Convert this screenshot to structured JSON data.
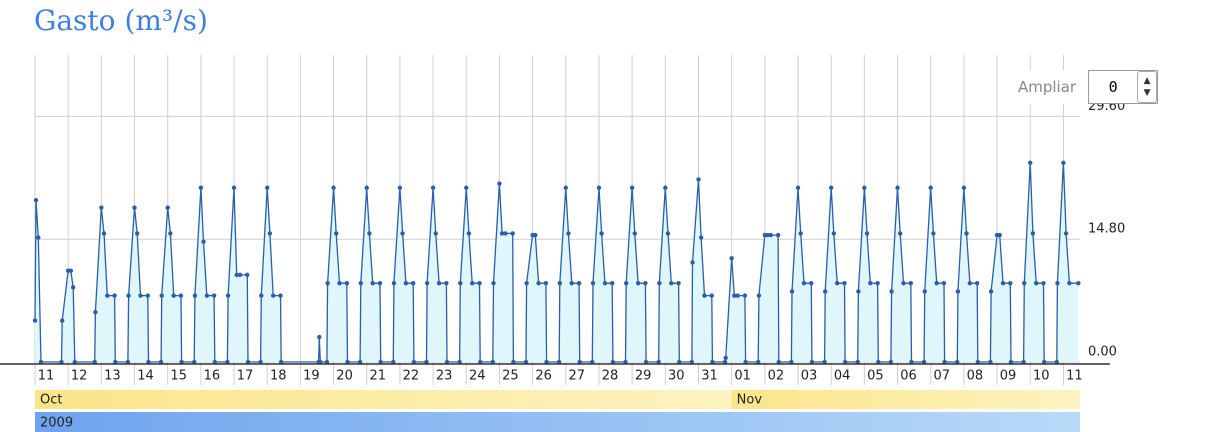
{
  "chart_data": {
    "type": "area-line",
    "title": "Gasto (m³/s)",
    "x": [
      0,
      0.03,
      0.1,
      0.18,
      0.8,
      0.82,
      1,
      1.08,
      1.15,
      1.2,
      1.8,
      1.82,
      2,
      2.08,
      2.18,
      2.4,
      2.42,
      2.8,
      2.82,
      3,
      3.08,
      3.18,
      3.4,
      3.42,
      3.8,
      3.82,
      4,
      4.08,
      4.18,
      4.4,
      4.42,
      4.8,
      4.82,
      5,
      5.08,
      5.18,
      5.4,
      5.42,
      5.8,
      5.82,
      6,
      6.08,
      6.18,
      6.4,
      6.42,
      6.8,
      6.82,
      7,
      7.08,
      7.18,
      7.4,
      7.42,
      8.55,
      8.57,
      8.6,
      8.8,
      8.82,
      9,
      9.08,
      9.18,
      9.4,
      9.42,
      9.8,
      9.82,
      10,
      10.08,
      10.18,
      10.4,
      10.42,
      10.8,
      10.82,
      11,
      11.08,
      11.18,
      11.4,
      11.42,
      11.8,
      11.82,
      12,
      12.08,
      12.18,
      12.4,
      12.42,
      12.8,
      12.82,
      13,
      13.08,
      13.18,
      13.4,
      13.42,
      13.8,
      13.82,
      14,
      14.08,
      14.18,
      14.4,
      14.42,
      14.8,
      14.82,
      15,
      15.08,
      15.18,
      15.4,
      15.42,
      15.8,
      15.82,
      16,
      16.08,
      16.18,
      16.4,
      16.42,
      16.8,
      16.82,
      17,
      17.08,
      17.18,
      17.4,
      17.42,
      17.8,
      17.82,
      18,
      18.08,
      18.18,
      18.4,
      18.42,
      18.8,
      18.82,
      19,
      19.08,
      19.18,
      19.4,
      19.42,
      19.8,
      19.82,
      20,
      20.08,
      20.18,
      20.4,
      20.42,
      20.8,
      20.82,
      21,
      21.08,
      21.18,
      21.4,
      21.42,
      21.8,
      21.82,
      22,
      22.08,
      22.18,
      22.4,
      22.42,
      22.8,
      22.82,
      23,
      23.08,
      23.18,
      23.4,
      23.42,
      23.8,
      23.82,
      24,
      24.08,
      24.18,
      24.4,
      24.42,
      24.8,
      24.82,
      25,
      25.08,
      25.18,
      25.4,
      25.42,
      25.8,
      25.82,
      26,
      26.08,
      26.18,
      26.4,
      26.42,
      26.8,
      26.82,
      27,
      27.08,
      27.18,
      27.4,
      27.42,
      27.8,
      27.82,
      28,
      28.08,
      28.18,
      28.4,
      28.42,
      28.8,
      28.82,
      29,
      29.08,
      29.18,
      29.4,
      29.42,
      29.8,
      29.82,
      30,
      30.08,
      30.18,
      30.4,
      30.42,
      30.8,
      30.82,
      31,
      31.08,
      31.18,
      31.45
    ],
    "values": [
      5,
      19.5,
      15,
      0,
      0,
      5,
      11,
      11,
      9,
      0,
      0,
      6,
      18.6,
      15.5,
      8,
      8,
      0,
      0,
      8,
      18.6,
      15.5,
      8,
      8,
      0,
      0,
      8,
      18.6,
      15.5,
      8,
      8,
      0,
      0,
      8,
      21,
      14.5,
      8,
      8,
      0,
      0,
      8,
      21,
      10.5,
      10.5,
      10.5,
      0,
      0,
      8,
      21,
      15.5,
      8,
      8,
      0,
      0,
      3,
      0,
      0,
      9.5,
      21,
      15.5,
      9.5,
      9.5,
      0,
      0,
      9.5,
      21,
      15.5,
      9.5,
      9.5,
      0,
      0,
      9.5,
      21,
      15.5,
      9.5,
      9.5,
      0,
      0,
      9.5,
      21,
      15.5,
      9.5,
      9.5,
      0,
      0,
      9.5,
      21,
      15.5,
      9.5,
      9.5,
      0,
      0,
      9.5,
      21.5,
      15.5,
      15.5,
      15.5,
      0,
      0,
      9.5,
      15.3,
      15.3,
      9.5,
      9.5,
      0,
      0,
      9.5,
      21,
      15.5,
      9.5,
      9.5,
      0,
      0,
      9.5,
      21,
      15.5,
      9.5,
      9.5,
      0,
      0,
      9.5,
      21,
      15.5,
      9.5,
      9.5,
      0,
      0,
      9.5,
      21,
      15.5,
      9.5,
      9.5,
      0,
      0,
      12,
      22,
      15,
      8,
      8,
      0,
      0,
      0.5,
      12.5,
      8,
      8,
      8,
      0,
      0,
      8,
      15.3,
      15.3,
      15.3,
      15.3,
      0,
      0,
      8.5,
      21,
      15.5,
      9.5,
      9.5,
      0,
      0,
      8.5,
      21,
      15.5,
      9.5,
      9.5,
      0,
      0,
      8.5,
      21,
      15.5,
      9.5,
      9.5,
      0,
      0,
      8.5,
      21,
      15.5,
      9.5,
      9.5,
      0,
      0,
      8.5,
      21,
      15.5,
      9.5,
      9.5,
      0,
      0,
      8.5,
      21,
      15.5,
      9.5,
      9.5,
      0,
      0,
      8.5,
      15.3,
      15.3,
      9.5,
      9.5,
      0,
      0,
      9.5,
      24,
      15.5,
      9.5,
      9.5,
      0,
      0,
      9.5,
      24,
      15.5,
      9.5,
      9.5
    ],
    "color": "#2a5ea8",
    "fill": "#dff6fa",
    "xlim": [
      0,
      31.5
    ],
    "ylim": [
      0,
      37
    ],
    "xticks": [
      {
        "value": 0,
        "label": "11"
      },
      {
        "value": 1,
        "label": "12"
      },
      {
        "value": 2,
        "label": "13"
      },
      {
        "value": 3,
        "label": "14"
      },
      {
        "value": 4,
        "label": "15"
      },
      {
        "value": 5,
        "label": "16"
      },
      {
        "value": 6,
        "label": "17"
      },
      {
        "value": 7,
        "label": "18"
      },
      {
        "value": 8,
        "label": "19"
      },
      {
        "value": 9,
        "label": "20"
      },
      {
        "value": 10,
        "label": "21"
      },
      {
        "value": 11,
        "label": "22"
      },
      {
        "value": 12,
        "label": "23"
      },
      {
        "value": 13,
        "label": "24"
      },
      {
        "value": 14,
        "label": "25"
      },
      {
        "value": 15,
        "label": "26"
      },
      {
        "value": 16,
        "label": "27"
      },
      {
        "value": 17,
        "label": "28"
      },
      {
        "value": 18,
        "label": "29"
      },
      {
        "value": 19,
        "label": "30"
      },
      {
        "value": 20,
        "label": "31"
      },
      {
        "value": 21,
        "label": "01"
      },
      {
        "value": 22,
        "label": "02"
      },
      {
        "value": 23,
        "label": "03"
      },
      {
        "value": 24,
        "label": "04"
      },
      {
        "value": 25,
        "label": "05"
      },
      {
        "value": 26,
        "label": "06"
      },
      {
        "value": 27,
        "label": "07"
      },
      {
        "value": 28,
        "label": "08"
      },
      {
        "value": 29,
        "label": "09"
      },
      {
        "value": 30,
        "label": "10"
      },
      {
        "value": 31,
        "label": "11"
      }
    ],
    "yticks": [
      {
        "value": 0,
        "label": "0.00"
      },
      {
        "value": 14.8,
        "label": "14.80"
      },
      {
        "value": 29.6,
        "label": "29.60"
      }
    ],
    "grid": true,
    "months": [
      {
        "label": "Oct",
        "x": 0
      },
      {
        "label": "Nov",
        "x": 21
      }
    ],
    "year": "2009"
  },
  "controls": {
    "zoom_label": "Ampliar",
    "zoom_value": 0
  }
}
